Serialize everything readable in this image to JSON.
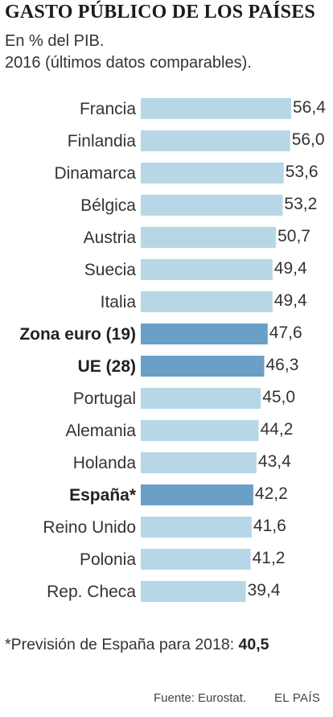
{
  "title": "GASTO PÚBLICO DE LOS PAÍSES",
  "subtitle_line1": "En % del PIB.",
  "subtitle_line2": "2016 (últimos datos comparables).",
  "colors": {
    "bar_default": "#b7d7e6",
    "bar_highlight": "#6a9fc8"
  },
  "chart_data": {
    "type": "bar",
    "orientation": "horizontal",
    "categories": [
      "Francia",
      "Finlandia",
      "Dinamarca",
      "Bélgica",
      "Austria",
      "Suecia",
      "Italia",
      "Zona euro (19)",
      "UE (28)",
      "Portugal",
      "Alemania",
      "Holanda",
      "España*",
      "Reino Unido",
      "Polonia",
      "Rep. Checa"
    ],
    "values": [
      56.4,
      56.0,
      53.6,
      53.2,
      50.7,
      49.4,
      49.4,
      47.6,
      46.3,
      45.0,
      44.2,
      43.4,
      42.2,
      41.6,
      41.2,
      39.4
    ],
    "value_labels": [
      "56,4",
      "56,0",
      "53,6",
      "53,2",
      "50,7",
      "49,4",
      "49,4",
      "47,6",
      "46,3",
      "45,0",
      "44,2",
      "43,4",
      "42,2",
      "41,6",
      "41,2",
      "39,4"
    ],
    "highlighted": [
      "Zona euro (19)",
      "UE (28)",
      "España*"
    ],
    "bold_labels": [
      "Zona euro (19)",
      "UE (28)",
      "España*"
    ],
    "xlim": [
      0,
      56.4
    ],
    "grid": false,
    "legend": "none"
  },
  "footnote": {
    "text": "*Previsión de España para 2018: ",
    "value": "40,5"
  },
  "source": "Fuente: Eurostat.",
  "brand": "EL PAÍS"
}
